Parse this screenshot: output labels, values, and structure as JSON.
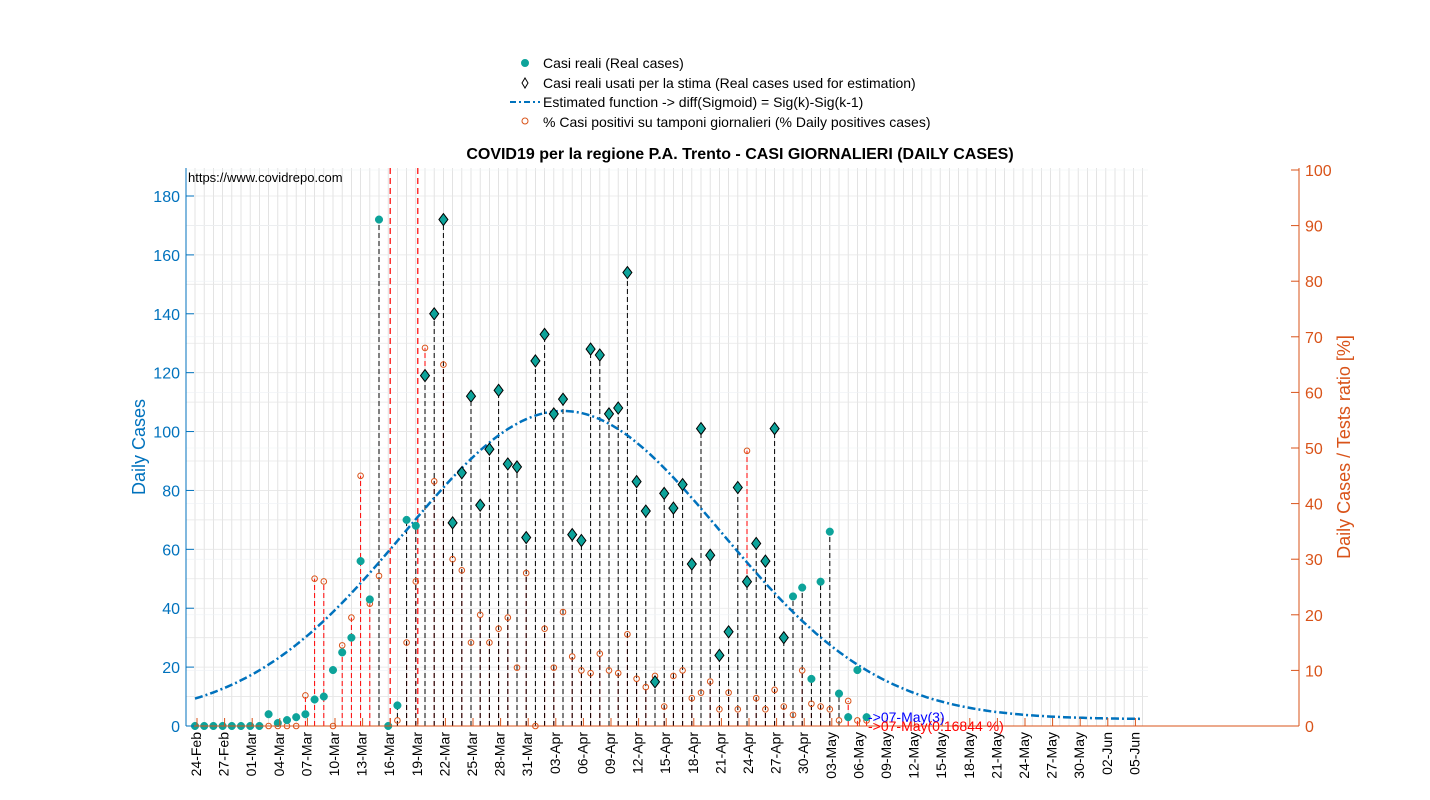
{
  "chart_data": {
    "type": "scatter",
    "title": "COVID19 per la regione P.A. Trento - CASI GIORNALIERI (DAILY CASES)",
    "ylabel": "Daily Cases",
    "y2label": "Daily Cases / Tests ratio [%]",
    "ylim": [
      0,
      190
    ],
    "y2lim": [
      0,
      100
    ],
    "yticks": [
      0,
      20,
      40,
      60,
      80,
      100,
      120,
      140,
      160,
      180
    ],
    "y2ticks": [
      0,
      10,
      20,
      30,
      40,
      50,
      60,
      70,
      80,
      90,
      100
    ],
    "grid": true,
    "legend_position": "top-center",
    "source_text": "https://www.covidrepo.com",
    "legend": [
      {
        "label": "Casi reali (Real cases)",
        "marker": "dot"
      },
      {
        "label": "Casi reali usati per la stima (Real cases used for estimation)",
        "marker": "diamond"
      },
      {
        "label": "Estimated function -> diff(Sigmoid) = Sig(k)-Sig(k-1)",
        "marker": "dashdot"
      },
      {
        "label": "% Casi positivi su tamponi giornalieri (% Daily positives cases)",
        "marker": "circle"
      }
    ],
    "x_ticks": [
      "24-Feb",
      "27-Feb",
      "01-Mar",
      "04-Mar",
      "07-Mar",
      "10-Mar",
      "13-Mar",
      "16-Mar",
      "19-Mar",
      "22-Mar",
      "25-Mar",
      "28-Mar",
      "31-Mar",
      "03-Apr",
      "06-Apr",
      "09-Apr",
      "12-Apr",
      "15-Apr",
      "18-Apr",
      "21-Apr",
      "24-Apr",
      "27-Apr",
      "30-Apr",
      "03-May",
      "06-May",
      "09-May",
      "12-May",
      "15-May",
      "18-May",
      "21-May",
      "24-May",
      "27-May",
      "30-May",
      "02-Jun",
      "05-Jun"
    ],
    "start_date": "24-Feb",
    "real_cases": [
      0,
      0,
      0,
      0,
      0,
      0,
      0,
      0,
      4,
      1,
      2,
      3,
      4,
      9,
      10,
      19,
      25,
      30,
      56,
      43,
      172,
      0,
      7,
      70,
      68,
      119,
      140,
      172,
      69,
      86,
      112,
      75,
      94,
      114,
      89,
      88,
      64,
      124,
      133,
      106,
      111,
      65,
      63,
      128,
      126,
      106,
      108,
      154,
      83,
      73,
      15,
      79,
      74,
      82,
      55,
      101,
      58,
      24,
      32,
      81,
      49,
      62,
      56,
      101,
      30,
      44,
      47,
      16,
      49,
      66,
      11,
      3,
      19,
      3
    ],
    "estimation_start_index": 25,
    "estimation_end_index": 64,
    "percent_positive": [
      0,
      0,
      0,
      0,
      0,
      0,
      0,
      0,
      0,
      0,
      0,
      0,
      5.5,
      26.5,
      26,
      0,
      14.5,
      19.5,
      45,
      22,
      27,
      0,
      1,
      15,
      26,
      68,
      44,
      65,
      30,
      28,
      15,
      20,
      15,
      17.5,
      19.5,
      10.5,
      27.5,
      0,
      17.5,
      10.5,
      20.5,
      12.5,
      10,
      9.5,
      13,
      10,
      9.5,
      16.5,
      8.5,
      7,
      9,
      3.5,
      9,
      10,
      5,
      6,
      8,
      3,
      6,
      3,
      49.5,
      5,
      3,
      6.5,
      3.5,
      2,
      10,
      4,
      3.5,
      3,
      1,
      4.5,
      1,
      1
    ],
    "estimated_function": {
      "peak_value": 107,
      "peak_index": 40,
      "sigma": 17.2,
      "floor": 2.3
    },
    "annotations": [
      {
        "text": "->07-May(3)",
        "color": "blue"
      },
      {
        "text": "->07-May(0.16844 %)",
        "color": "red"
      }
    ],
    "vertical_markers": [
      "16-Mar",
      "19-Mar"
    ]
  }
}
